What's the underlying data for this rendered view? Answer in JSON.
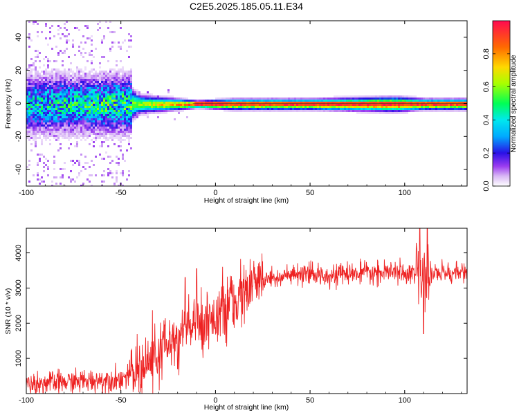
{
  "title": "C2E5.2025.185.05.11.E34",
  "colors": {
    "snr_line": "#ee2222",
    "colormap_low": "#ffffff",
    "colormap_stops": [
      "#f4eefc",
      "#cfa8f2",
      "#9e3df2",
      "#3a1fe8",
      "#00ccff",
      "#00ff60",
      "#b8ff00",
      "#ffd000",
      "#ff6a00",
      "#ff1060"
    ]
  },
  "chart_data": [
    {
      "type": "heatmap",
      "name": "spectrogram",
      "xlabel": "Height of straight line (km)",
      "ylabel": "Frequency (Hz)",
      "xlim": [
        -100,
        133
      ],
      "ylim": [
        -50,
        50
      ],
      "x_ticks": [
        "-100",
        "-50",
        "0",
        "50",
        "100"
      ],
      "y_ticks": [
        "-40",
        "-20",
        "0",
        "20",
        "40"
      ],
      "colorbar": {
        "label": "Normalized spectral amplitude",
        "range": [
          0,
          1
        ],
        "ticks": [
          "0.0",
          "0.2",
          "0.4",
          "0.6",
          "0.8"
        ]
      },
      "description_points": [
        {
          "x": -100,
          "spread_hz": 50,
          "peak": 0.45
        },
        {
          "x": -70,
          "spread_hz": 45,
          "peak": 0.5
        },
        {
          "x": -50,
          "spread_hz": 12,
          "peak": 0.55
        },
        {
          "x": -40,
          "spread_hz": 5,
          "peak": 0.6
        },
        {
          "x": -10,
          "spread_hz": 2,
          "peak": 0.95
        },
        {
          "x": 10,
          "spread_hz": 3,
          "peak": 0.9
        },
        {
          "x": 50,
          "spread_hz": 3,
          "peak": 0.92
        },
        {
          "x": 95,
          "spread_hz": 4,
          "peak": 0.95
        },
        {
          "x": 110,
          "spread_hz": 3,
          "peak": 0.9
        },
        {
          "x": 133,
          "spread_hz": 3,
          "peak": 0.9
        }
      ]
    },
    {
      "type": "line",
      "name": "snr",
      "xlabel": "Height of straight line (km)",
      "ylabel": "SNR (10 * v/v)",
      "xlim": [
        -100,
        133
      ],
      "ylim": [
        0,
        4700
      ],
      "x_ticks": [
        "-100",
        "-50",
        "0",
        "50",
        "100"
      ],
      "y_ticks": [
        "1000",
        "2000",
        "3000",
        "4000"
      ],
      "trend": {
        "x": [
          -100,
          -80,
          -60,
          -50,
          -45,
          -40,
          -35,
          -30,
          -25,
          -20,
          -15,
          -10,
          -5,
          0,
          5,
          10,
          15,
          20,
          25,
          30,
          40,
          60,
          80,
          100,
          108,
          112,
          120,
          133
        ],
        "y": [
          280,
          320,
          380,
          420,
          520,
          700,
          900,
          1150,
          1400,
          1650,
          1850,
          2000,
          2100,
          2200,
          2400,
          2600,
          2850,
          3050,
          3200,
          3300,
          3350,
          3380,
          3420,
          3450,
          3400,
          3400,
          3430,
          3450
        ]
      },
      "spikes": [
        {
          "x": -20,
          "y": 3000
        },
        {
          "x": -16,
          "y": 3300
        },
        {
          "x": -10,
          "y": 3550
        },
        {
          "x": -20,
          "y": 700
        },
        {
          "x": 108,
          "y": 4700
        },
        {
          "x": 110,
          "y": 1700
        },
        {
          "x": 112,
          "y": 4700
        }
      ]
    }
  ]
}
